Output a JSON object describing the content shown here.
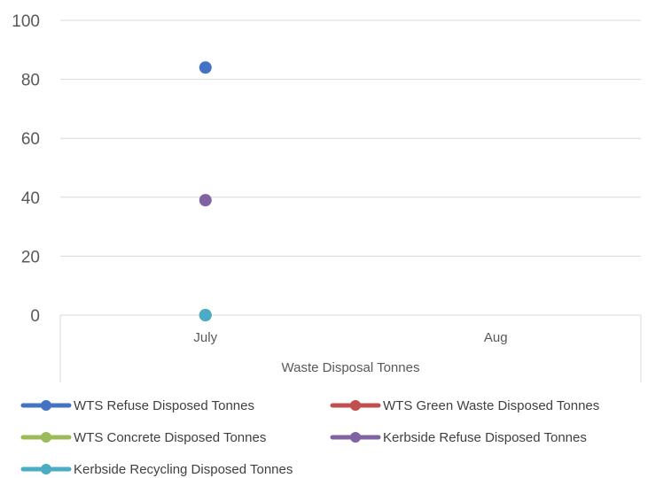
{
  "chart_data": {
    "type": "line",
    "title": "",
    "xlabel": "Waste Disposal Tonnes",
    "ylabel": "",
    "categories": [
      "July",
      "Aug"
    ],
    "ylim": [
      0,
      100
    ],
    "yticks": [
      0,
      20,
      40,
      60,
      80,
      100
    ],
    "grid": true,
    "legend_position": "bottom",
    "series": [
      {
        "name": "WTS Refuse Disposed Tonnes",
        "color": "#4472c4",
        "values": [
          84,
          null
        ]
      },
      {
        "name": "WTS Green Waste Disposed Tonnes",
        "color": "#c0504d",
        "values": [
          0,
          null
        ]
      },
      {
        "name": "WTS Concrete Disposed Tonnes",
        "color": "#9bbb59",
        "values": [
          0,
          null
        ]
      },
      {
        "name": "Kerbside Refuse Disposed Tonnes",
        "color": "#8064a2",
        "values": [
          39,
          null
        ]
      },
      {
        "name": "Kerbside Recycling Disposed Tonnes",
        "color": "#4bacc6",
        "values": [
          0,
          null
        ]
      }
    ]
  }
}
